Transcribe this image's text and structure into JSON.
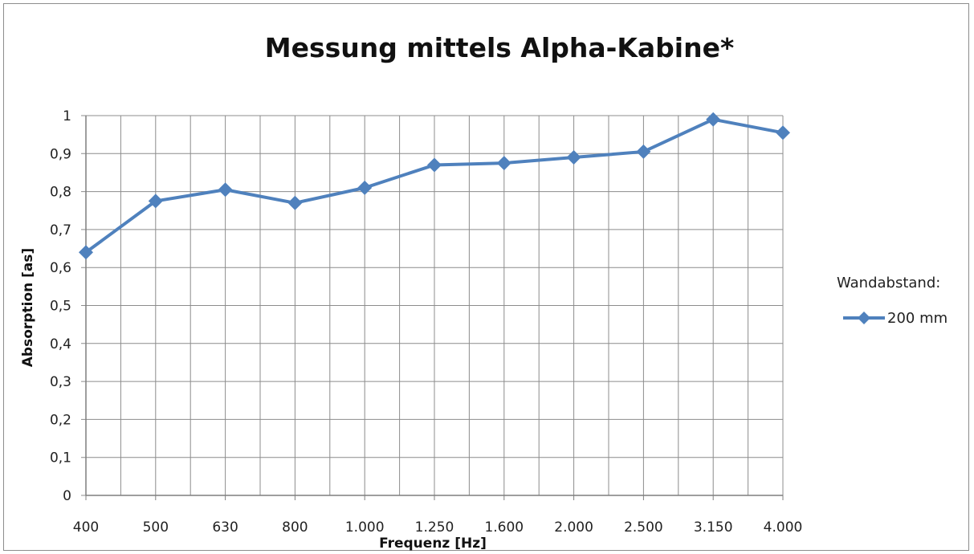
{
  "chart_data": {
    "type": "line",
    "title": "Messung mittels Alpha-Kabine*",
    "xlabel": "Frequenz [Hz]",
    "ylabel": "Absorption [as]",
    "categories": [
      "400",
      "500",
      "630",
      "800",
      "1.000",
      "1.250",
      "1.600",
      "2.000",
      "2.500",
      "3.150",
      "4.000"
    ],
    "y_ticks": [
      "0",
      "0,1",
      "0,2",
      "0,3",
      "0,4",
      "0,5",
      "0,6",
      "0,7",
      "0,8",
      "0,9",
      "1"
    ],
    "ylim": [
      0,
      1
    ],
    "grid": true,
    "legend": {
      "title": "Wandabstand:",
      "placement": "right"
    },
    "series": [
      {
        "name": "200 mm",
        "color": "#4f81bd",
        "marker": "diamond",
        "values": [
          0.64,
          0.775,
          0.805,
          0.77,
          0.81,
          0.87,
          0.875,
          0.89,
          0.905,
          0.99,
          0.955
        ]
      }
    ]
  }
}
